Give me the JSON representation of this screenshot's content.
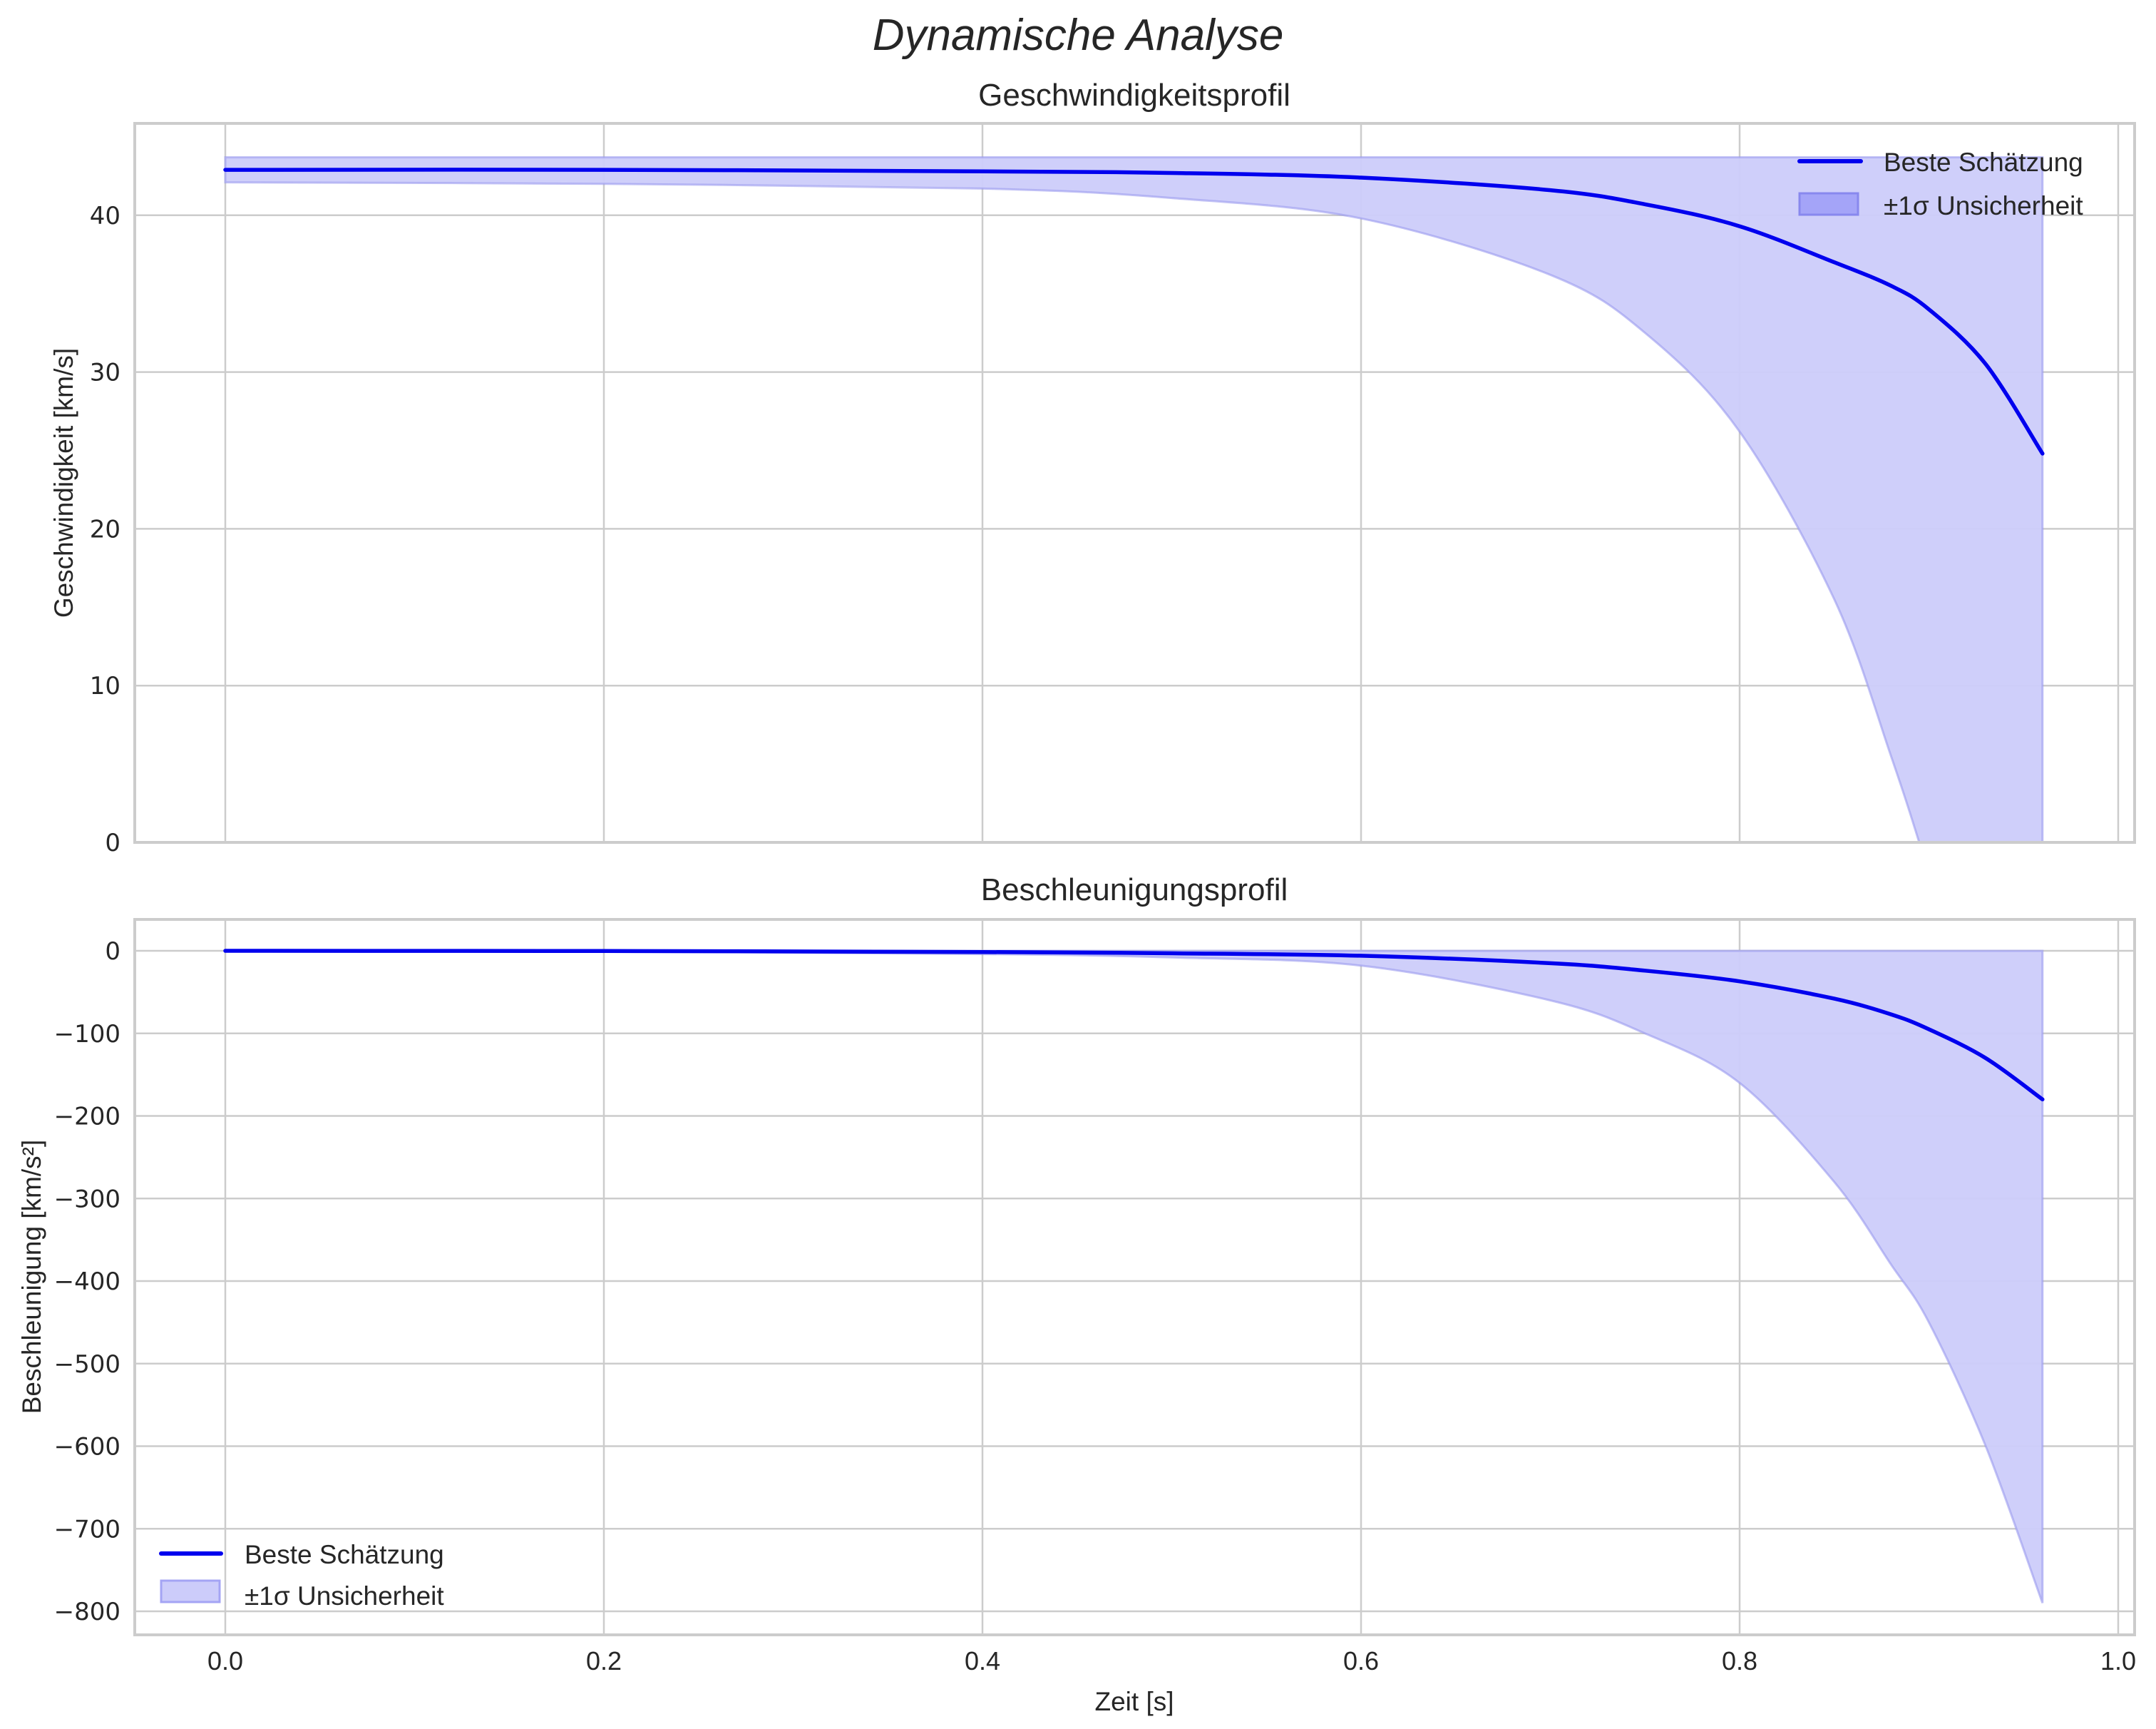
{
  "figure": {
    "title": "Dynamische Analyse"
  },
  "colors": {
    "line": "#0000ee",
    "band_fill": "#ccccfa",
    "band_edge": "#9999ee",
    "grid": "#cccccc",
    "text": "#262626"
  },
  "top": {
    "title": "Geschwindigkeitsprofil",
    "ylabel": "Geschwindigkeit [km/s]",
    "yticks": [
      "0",
      "10",
      "20",
      "30",
      "40"
    ],
    "legend": {
      "line_label": "Beste Schätzung",
      "band_label": "±1σ Unsicherheit"
    }
  },
  "bottom": {
    "title": "Beschleunigungsprofil",
    "ylabel": "Beschleunigung [km/s²]",
    "yticks": [
      "0",
      "−100",
      "−200",
      "−300",
      "−400",
      "−500",
      "−600",
      "−700",
      "−800"
    ],
    "xlabel": "Zeit [s]",
    "xticks": [
      "0.0",
      "0.2",
      "0.4",
      "0.6",
      "0.8",
      "1.0"
    ],
    "legend": {
      "line_label": "Beste Schätzung",
      "band_label": "±1σ Unsicherheit"
    }
  },
  "chart_data": [
    {
      "type": "line",
      "title": "Geschwindigkeitsprofil",
      "suptitle": "Dynamische Analyse",
      "xlabel": "",
      "ylabel": "Geschwindigkeit [km/s]",
      "xlim": [
        -0.048,
        1.01
      ],
      "ylim": [
        0,
        45.9
      ],
      "xticks": [
        0.0,
        0.2,
        0.4,
        0.6,
        0.8,
        1.0
      ],
      "yticks": [
        0,
        10,
        20,
        30,
        40
      ],
      "grid": true,
      "legend_position": "upper right",
      "x": [
        0.0,
        0.2,
        0.4,
        0.5,
        0.6,
        0.7,
        0.75,
        0.8,
        0.85,
        0.88,
        0.9,
        0.93,
        0.96
      ],
      "series": [
        {
          "name": "Beste Schätzung",
          "type": "line",
          "values": [
            42.9,
            42.9,
            42.8,
            42.7,
            42.4,
            41.6,
            40.7,
            39.3,
            37.0,
            35.5,
            34.0,
            30.5,
            24.8
          ]
        },
        {
          "name": "±1σ Unsicherheit (obere Grenze)",
          "type": "band_upper",
          "values": [
            43.7,
            43.7,
            43.7,
            43.7,
            43.7,
            43.7,
            43.7,
            43.7,
            43.7,
            43.7,
            43.7,
            43.7,
            43.7
          ]
        },
        {
          "name": "±1σ Unsicherheit (untere Grenze)",
          "type": "band_lower",
          "values": [
            42.1,
            42.0,
            41.7,
            41.1,
            39.8,
            36.2,
            32.5,
            26.2,
            15.5,
            5.5,
            -2.0,
            -14.0,
            -30.0
          ]
        }
      ]
    },
    {
      "type": "line",
      "title": "Beschleunigungsprofil",
      "xlabel": "Zeit [s]",
      "ylabel": "Beschleunigung [km/s²]",
      "xlim": [
        -0.048,
        1.01
      ],
      "ylim": [
        -838,
        38
      ],
      "xticks": [
        0.0,
        0.2,
        0.4,
        0.6,
        0.8,
        1.0
      ],
      "yticks": [
        0,
        -100,
        -200,
        -300,
        -400,
        -500,
        -600,
        -700,
        -800
      ],
      "grid": true,
      "legend_position": "lower left",
      "x": [
        0.0,
        0.2,
        0.4,
        0.5,
        0.6,
        0.7,
        0.75,
        0.8,
        0.85,
        0.88,
        0.9,
        0.93,
        0.96
      ],
      "series": [
        {
          "name": "Beste Schätzung",
          "type": "line",
          "values": [
            0,
            -0.3,
            -1.5,
            -3,
            -6,
            -15,
            -24,
            -37,
            -58,
            -77,
            -95,
            -130,
            -180
          ]
        },
        {
          "name": "±1σ Unsicherheit (obere Grenze)",
          "type": "band_upper",
          "values": [
            0,
            0,
            0,
            0,
            0,
            0,
            0,
            0,
            0,
            0,
            0,
            0,
            0
          ]
        },
        {
          "name": "±1σ Unsicherheit (untere Grenze)",
          "type": "band_lower",
          "values": [
            0,
            -1,
            -4,
            -8,
            -18,
            -60,
            -100,
            -160,
            -280,
            -380,
            -450,
            -600,
            -790
          ]
        }
      ]
    }
  ]
}
